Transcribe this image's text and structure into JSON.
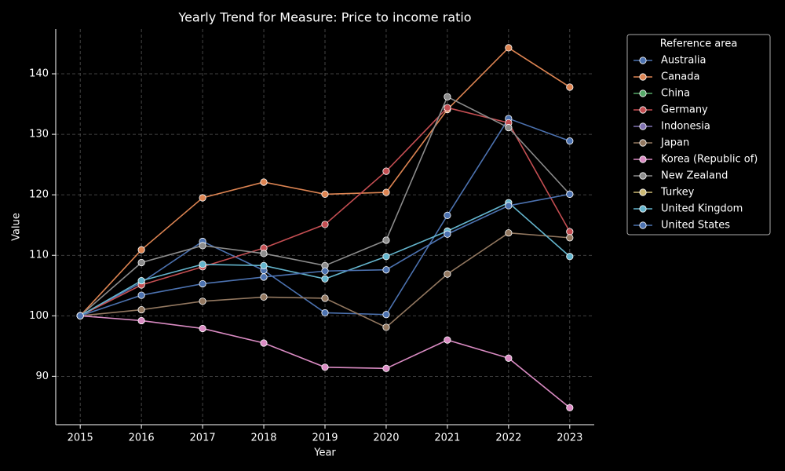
{
  "chart_data": {
    "type": "line",
    "title": "Yearly Trend for Measure: Price to income ratio",
    "x_label": "Year",
    "y_label": "Value",
    "x": [
      2015,
      2016,
      2017,
      2018,
      2019,
      2020,
      2021,
      2022,
      2023
    ],
    "xlim": [
      2014.6,
      2023.4
    ],
    "xticks": [
      2015,
      2016,
      2017,
      2018,
      2019,
      2020,
      2021,
      2022,
      2023
    ],
    "ylim": [
      82,
      147.4
    ],
    "yticks": [
      90,
      100,
      110,
      120,
      130,
      140
    ],
    "grid": true,
    "legend_title": "Reference area",
    "legend_position": "outside-upper-right",
    "series": [
      {
        "name": "Australia",
        "color": "#4c72b0",
        "values": [
          100,
          105.5,
          112.3,
          107.5,
          100.5,
          100.2,
          116.6,
          132.6,
          128.9
        ]
      },
      {
        "name": "Canada",
        "color": "#dd8452",
        "values": [
          100,
          110.9,
          119.5,
          122.1,
          120.1,
          120.4,
          134.1,
          144.3,
          137.8
        ]
      },
      {
        "name": "China",
        "color": "#55a868",
        "values": [
          null,
          null,
          null,
          null,
          null,
          null,
          null,
          null,
          null
        ]
      },
      {
        "name": "Germany",
        "color": "#c44e52",
        "values": [
          100,
          105.1,
          108.1,
          111.2,
          115.1,
          123.9,
          134.4,
          131.9,
          113.9
        ]
      },
      {
        "name": "Indonesia",
        "color": "#8172b3",
        "values": [
          null,
          null,
          null,
          null,
          null,
          null,
          null,
          null,
          null
        ]
      },
      {
        "name": "Japan",
        "color": "#937860",
        "values": [
          100,
          101.0,
          102.4,
          103.1,
          102.9,
          98.1,
          106.9,
          113.7,
          112.9
        ]
      },
      {
        "name": "Korea (Republic of)",
        "color": "#da8bc3",
        "values": [
          100,
          99.2,
          97.9,
          95.5,
          91.5,
          91.3,
          96.0,
          93.0,
          84.8
        ]
      },
      {
        "name": "New Zealand",
        "color": "#8c8c8c",
        "values": [
          100,
          108.8,
          111.6,
          110.3,
          108.3,
          112.5,
          136.2,
          131.1,
          120.1
        ]
      },
      {
        "name": "Turkey",
        "color": "#ccb974",
        "values": [
          null,
          null,
          null,
          null,
          null,
          null,
          null,
          null,
          null
        ]
      },
      {
        "name": "United Kingdom",
        "color": "#64b5cd",
        "values": [
          100,
          105.8,
          108.5,
          108.3,
          106.1,
          109.8,
          114.0,
          118.7,
          109.8
        ]
      },
      {
        "name": "United States",
        "color": "#4c72b0",
        "values": [
          100,
          103.4,
          105.3,
          106.4,
          107.4,
          107.6,
          113.5,
          118.2,
          120.1
        ]
      }
    ]
  }
}
